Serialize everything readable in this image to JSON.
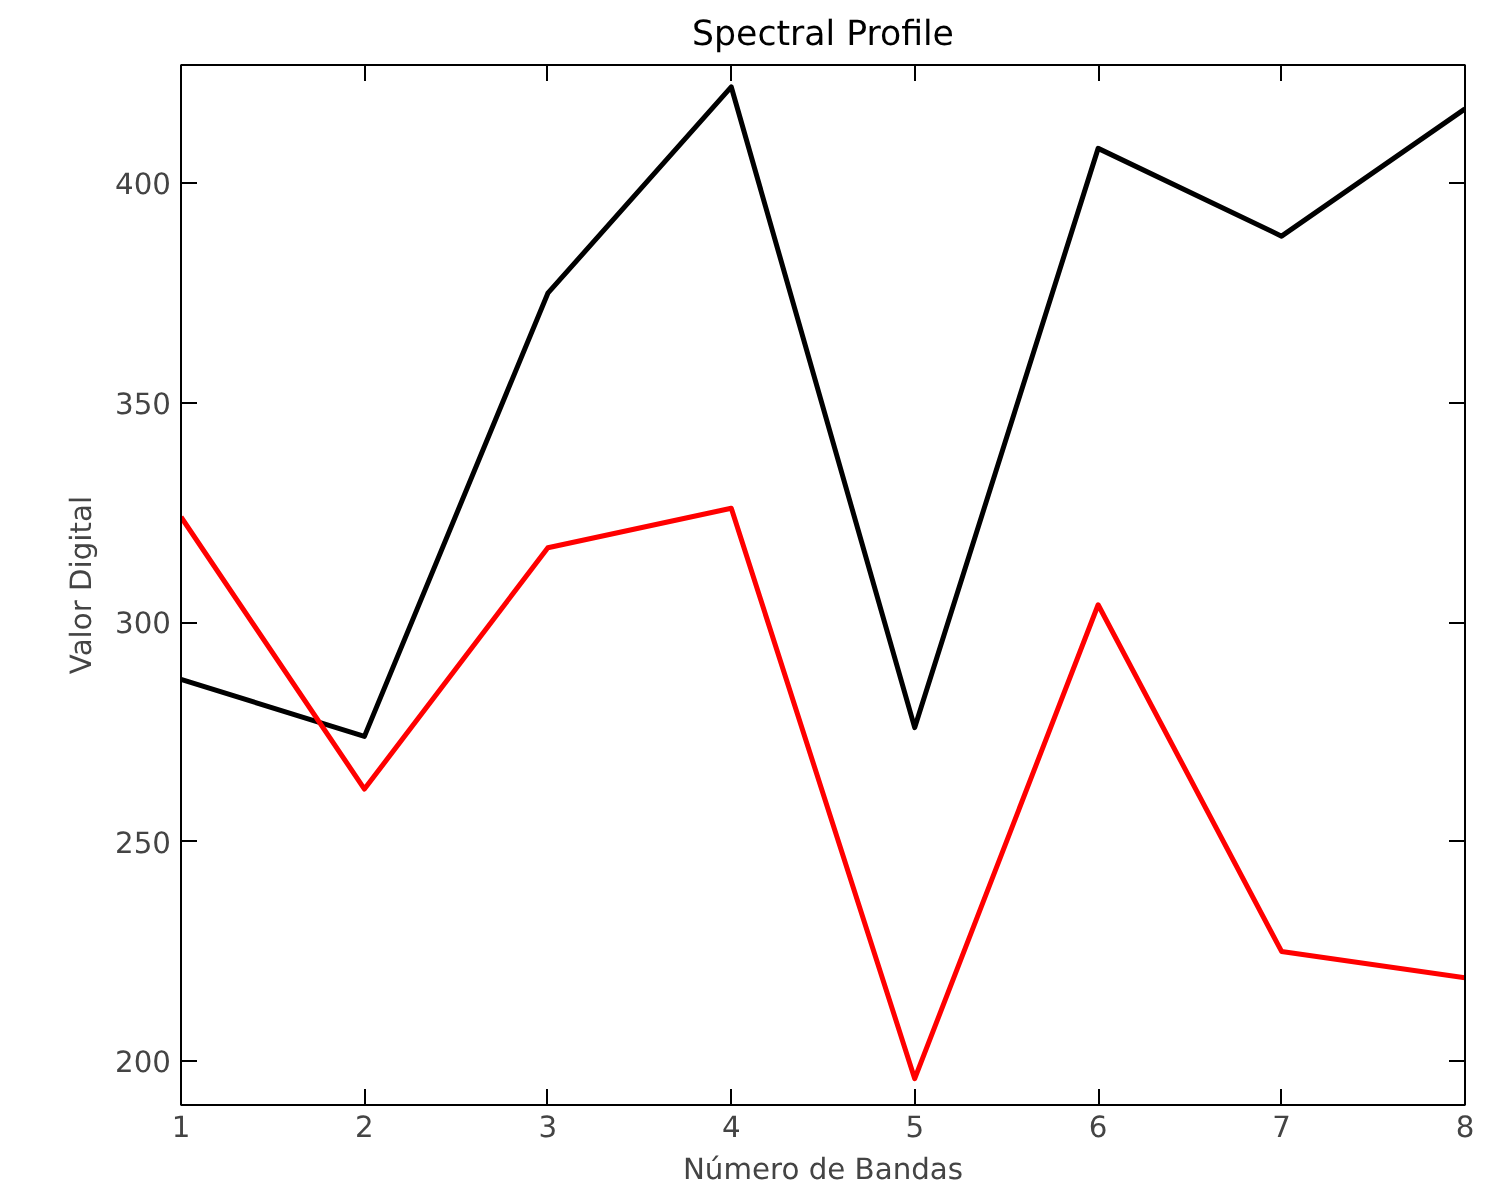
{
  "chart_data": {
    "type": "line",
    "title": "Spectral Profile",
    "xlabel": "Número de Bandas",
    "ylabel": "Valor Digital",
    "x": [
      1,
      2,
      3,
      4,
      5,
      6,
      7,
      8
    ],
    "series": [
      {
        "color": "#000000",
        "values": [
          287,
          274,
          375,
          422,
          276,
          408,
          388,
          417
        ]
      },
      {
        "color": "#ff0000",
        "values": [
          324,
          262,
          317,
          326,
          196,
          304,
          225,
          219
        ]
      }
    ],
    "xlim": [
      1,
      8
    ],
    "xticks": [
      1,
      2,
      3,
      4,
      5,
      6,
      7,
      8
    ],
    "ylim": [
      190,
      427
    ],
    "yticks": [
      200,
      250,
      300,
      350,
      400
    ],
    "grid": false,
    "line_style": "solid"
  }
}
